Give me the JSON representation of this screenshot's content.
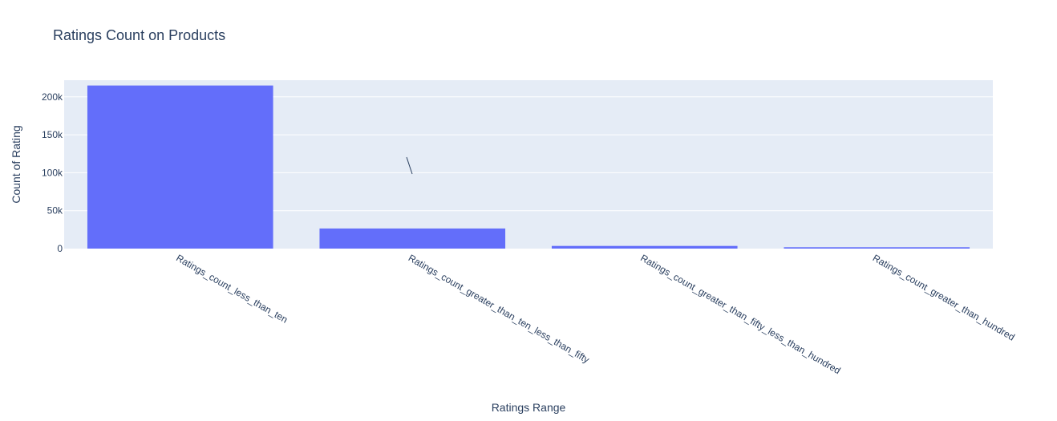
{
  "chart_data": {
    "type": "bar",
    "title": "Ratings Count on Products",
    "xlabel": "Ratings Range",
    "ylabel": "Count of Rating",
    "categories": [
      "Ratings_count_less_than_ten",
      "Ratings_count_greater_than_ten_less_than_fifty",
      "Ratings_count_greater_than_fifty_less_than_hundred",
      "Ratings_count_greater_than_hundred"
    ],
    "values": [
      215000,
      26500,
      3500,
      1800
    ],
    "ylim": [
      0,
      222000
    ],
    "yticks": [
      0,
      50000,
      100000,
      150000,
      200000
    ],
    "ytick_labels": [
      "0",
      "50k",
      "100k",
      "150k",
      "200k"
    ],
    "grid": true,
    "legend": "none",
    "colors": {
      "bar": "#636efa",
      "plot_background": "#e5ecf6",
      "grid": "#ffffff",
      "text": "#2a3f5f"
    }
  }
}
